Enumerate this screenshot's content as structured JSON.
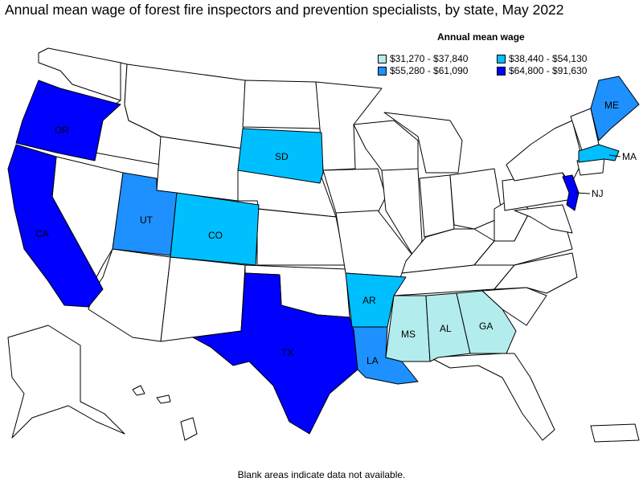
{
  "title": "Annual mean wage of forest fire inspectors and prevention specialists, by state, May 2022",
  "legend": {
    "title": "Annual mean wage",
    "items": [
      {
        "label": "$31,270 - $37,840",
        "color": "#b3ecec"
      },
      {
        "label": "$38,440 - $54,130",
        "color": "#00bfff"
      },
      {
        "label": "$55,280 - $61,090",
        "color": "#1e90ff"
      },
      {
        "label": "$64,800 - $91,630",
        "color": "#0000ff"
      }
    ]
  },
  "states": {
    "OR": {
      "label": "OR",
      "bin": 3
    },
    "CA": {
      "label": "CA",
      "bin": 3
    },
    "TX": {
      "label": "TX",
      "bin": 3
    },
    "NJ": {
      "label": "NJ",
      "bin": 3
    },
    "UT": {
      "label": "UT",
      "bin": 2
    },
    "LA": {
      "label": "LA",
      "bin": 2
    },
    "ME": {
      "label": "ME",
      "bin": 2
    },
    "SD": {
      "label": "SD",
      "bin": 1
    },
    "CO": {
      "label": "CO",
      "bin": 1
    },
    "AR": {
      "label": "AR",
      "bin": 1
    },
    "MA": {
      "label": "MA",
      "bin": 1
    },
    "MS": {
      "label": "MS",
      "bin": 0
    },
    "AL": {
      "label": "AL",
      "bin": 0
    },
    "GA": {
      "label": "GA",
      "bin": 0
    }
  },
  "footnote": "Blank areas indicate data not available."
}
